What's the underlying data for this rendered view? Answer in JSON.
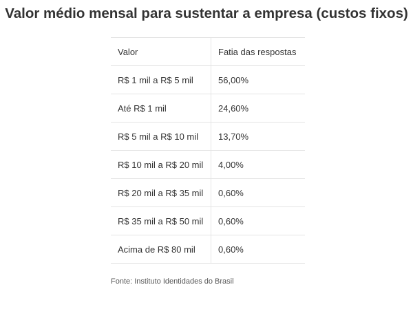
{
  "chart_data": {
    "type": "table",
    "title": "Valor médio mensal para sustentar a empresa (custos fixos)",
    "columns": [
      "Valor",
      "Fatia das respostas"
    ],
    "rows": [
      [
        "R$ 1 mil a R$ 5 mil",
        "56,00%"
      ],
      [
        "Até R$ 1 mil",
        "24,60%"
      ],
      [
        "R$ 5 mil a R$ 10 mil",
        "13,70%"
      ],
      [
        "R$ 10 mil a R$ 20 mil",
        "4,00%"
      ],
      [
        "R$ 20 mil a R$ 35 mil",
        "0,60%"
      ],
      [
        "R$ 35 mil a R$ 50 mil",
        "0,60%"
      ],
      [
        "Acima de R$ 80 mil",
        "0,60%"
      ]
    ],
    "values": [
      56.0,
      24.6,
      13.7,
      4.0,
      0.6,
      0.6,
      0.6
    ],
    "source": "Fonte: Instituto Identidades do Brasil"
  }
}
